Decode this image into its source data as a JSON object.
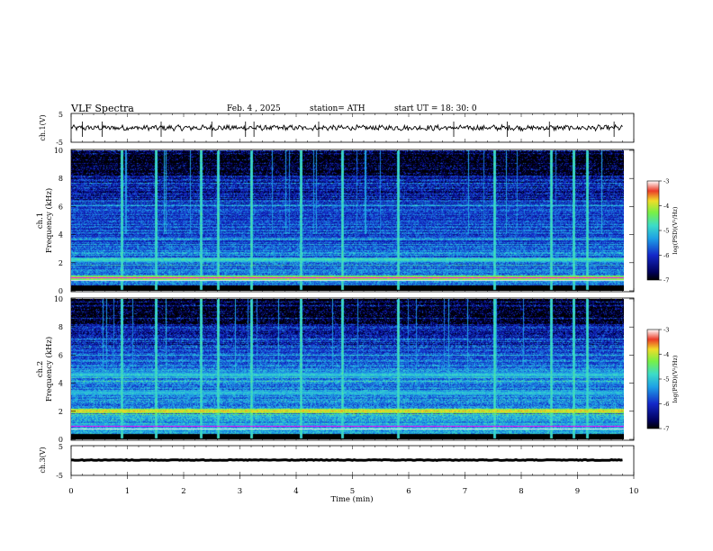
{
  "header": {
    "title": "VLF  Spectra",
    "date": "Feb. 4 , 2025",
    "station": "station= ATH",
    "start": "start  UT  =   18: 30: 0"
  },
  "chart_data": [
    {
      "type": "line",
      "panel": "ch.1 waveform",
      "ylabel": "ch.1(V)",
      "ylim": [
        -5,
        5
      ],
      "yticks": [
        "5",
        "-5"
      ],
      "xlim": [
        0,
        10
      ],
      "description_values": {
        "mean": 0.0,
        "amplitude": 0.8,
        "spikes": [
          0.2,
          0.55,
          1.6,
          2.5,
          3.1,
          3.25,
          4.4,
          6.8,
          7.75,
          8.5,
          9.65
        ]
      }
    },
    {
      "type": "heatmap",
      "panel": "ch.1 spectrogram",
      "ylabel_channel": "ch.1",
      "ylabel": "Frequency  (kHz)",
      "ylim": [
        0,
        10
      ],
      "yticks": [
        "0",
        "2",
        "4",
        "6",
        "8",
        "10"
      ],
      "xlim": [
        0,
        10
      ],
      "colorbar": {
        "label": "log(PSD)(V²/Hz)",
        "ticks": [
          "-3",
          "-4",
          "-5",
          "-6",
          "-7"
        ],
        "range": [
          -7,
          -3
        ]
      },
      "bands_khz": [
        {
          "f": 2.2,
          "level": -4.7
        },
        {
          "f": 0.9,
          "level": -4.0
        },
        {
          "f": 1.4,
          "level": -5.6
        },
        {
          "f": 3.7,
          "level": -5.7
        }
      ],
      "bursts_min": [
        0.9,
        1.5,
        2.3,
        2.6,
        3.2,
        4.07,
        4.8,
        5.8,
        7.5,
        8.5,
        8.9,
        9.15
      ]
    },
    {
      "type": "heatmap",
      "panel": "ch.2 spectrogram",
      "ylabel_channel": "ch.2",
      "ylabel": "Frequency  (kHz)",
      "ylim": [
        0,
        10
      ],
      "yticks": [
        "0",
        "2",
        "4",
        "6",
        "8",
        "10"
      ],
      "xlim": [
        0,
        10
      ],
      "colorbar": {
        "label": "log(PSD)(V²/Hz)",
        "ticks": [
          "-3",
          "-4",
          "-5",
          "-6",
          "-7"
        ],
        "range": [
          -7,
          -3
        ]
      },
      "bands_khz": [
        {
          "f": 2.0,
          "level": -3.8
        },
        {
          "f": 3.3,
          "level": -5.0
        },
        {
          "f": 4.6,
          "level": -4.9
        },
        {
          "f": 1.0,
          "level": -5.2
        }
      ],
      "bursts_min": [
        0.9,
        1.5,
        2.3,
        2.6,
        3.2,
        4.07,
        4.8,
        5.8,
        7.5,
        8.5,
        8.9,
        9.15
      ]
    },
    {
      "type": "line",
      "panel": "ch.3 waveform",
      "ylabel": "ch.3(V)",
      "ylim": [
        -5,
        5
      ],
      "yticks": [
        "5",
        "-5"
      ],
      "xlim": [
        0,
        10
      ],
      "xlabel": "Time  (min)",
      "xticks": [
        "0",
        "1",
        "2",
        "3",
        "4",
        "5",
        "6",
        "7",
        "8",
        "9",
        "10"
      ],
      "description_values": {
        "mean": 0.0,
        "amplitude": 0.15
      }
    }
  ],
  "colors": {
    "background": "#000000",
    "low": "#0a1a8c",
    "mid": "#19b9e6",
    "high": "#8cf04a",
    "peak": "#e63232"
  }
}
